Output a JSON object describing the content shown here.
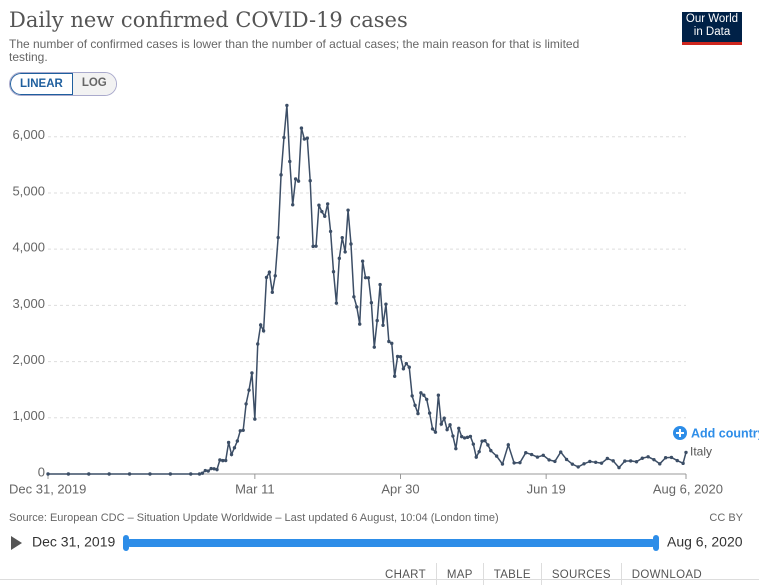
{
  "chart_data": {
    "type": "line",
    "title": "Daily new confirmed COVID-19 cases",
    "subtitle": "The number of confirmed cases is lower than the number of actual cases; the main reason for that is limited testing.",
    "x": [
      "2019-12-31",
      "2020-01-07",
      "2020-01-14",
      "2020-01-21",
      "2020-01-28",
      "2020-02-04",
      "2020-02-11",
      "2020-02-18",
      "2020-02-21",
      "2020-02-22",
      "2020-02-23",
      "2020-02-24",
      "2020-02-25",
      "2020-02-26",
      "2020-02-27",
      "2020-02-28",
      "2020-02-29",
      "2020-03-01",
      "2020-03-02",
      "2020-03-03",
      "2020-03-04",
      "2020-03-05",
      "2020-03-06",
      "2020-03-07",
      "2020-03-08",
      "2020-03-09",
      "2020-03-10",
      "2020-03-11",
      "2020-03-12",
      "2020-03-13",
      "2020-03-14",
      "2020-03-15",
      "2020-03-16",
      "2020-03-17",
      "2020-03-18",
      "2020-03-19",
      "2020-03-20",
      "2020-03-21",
      "2020-03-22",
      "2020-03-23",
      "2020-03-24",
      "2020-03-25",
      "2020-03-26",
      "2020-03-27",
      "2020-03-28",
      "2020-03-29",
      "2020-03-30",
      "2020-03-31",
      "2020-04-01",
      "2020-04-02",
      "2020-04-03",
      "2020-04-04",
      "2020-04-05",
      "2020-04-06",
      "2020-04-07",
      "2020-04-08",
      "2020-04-09",
      "2020-04-10",
      "2020-04-11",
      "2020-04-12",
      "2020-04-13",
      "2020-04-14",
      "2020-04-15",
      "2020-04-16",
      "2020-04-17",
      "2020-04-18",
      "2020-04-19",
      "2020-04-20",
      "2020-04-21",
      "2020-04-22",
      "2020-04-23",
      "2020-04-24",
      "2020-04-25",
      "2020-04-26",
      "2020-04-27",
      "2020-04-28",
      "2020-04-29",
      "2020-04-30",
      "2020-05-01",
      "2020-05-02",
      "2020-05-03",
      "2020-05-04",
      "2020-05-05",
      "2020-05-06",
      "2020-05-07",
      "2020-05-08",
      "2020-05-09",
      "2020-05-10",
      "2020-05-11",
      "2020-05-12",
      "2020-05-13",
      "2020-05-14",
      "2020-05-15",
      "2020-05-16",
      "2020-05-17",
      "2020-05-18",
      "2020-05-19",
      "2020-05-20",
      "2020-05-21",
      "2020-05-22",
      "2020-05-23",
      "2020-05-24",
      "2020-05-25",
      "2020-05-26",
      "2020-05-27",
      "2020-05-28",
      "2020-05-29",
      "2020-05-30",
      "2020-05-31",
      "2020-06-02",
      "2020-06-04",
      "2020-06-06",
      "2020-06-08",
      "2020-06-10",
      "2020-06-12",
      "2020-06-14",
      "2020-06-16",
      "2020-06-18",
      "2020-06-20",
      "2020-06-22",
      "2020-06-24",
      "2020-06-26",
      "2020-06-28",
      "2020-06-30",
      "2020-07-02",
      "2020-07-04",
      "2020-07-06",
      "2020-07-08",
      "2020-07-10",
      "2020-07-12",
      "2020-07-14",
      "2020-07-16",
      "2020-07-18",
      "2020-07-20",
      "2020-07-22",
      "2020-07-24",
      "2020-07-26",
      "2020-07-28",
      "2020-07-30",
      "2020-08-01",
      "2020-08-03",
      "2020-08-05",
      "2020-08-06"
    ],
    "series": [
      {
        "name": "Italy",
        "color": "#3c4e66",
        "values": [
          0,
          0,
          0,
          0,
          0,
          0,
          0,
          0,
          0,
          14,
          62,
          53,
          97,
          93,
          78,
          250,
          238,
          240,
          561,
          347,
          466,
          587,
          769,
          778,
          1247,
          1492,
          1797,
          977,
          2313,
          2651,
          2547,
          3497,
          3590,
          3233,
          3526,
          4207,
          5322,
          5986,
          6557,
          5560,
          4789,
          5249,
          5210,
          6153,
          5959,
          5974,
          5217,
          4050,
          4053,
          4782,
          4668,
          4585,
          4805,
          4316,
          3599,
          3039,
          3836,
          4204,
          3951,
          4694,
          4092,
          3153,
          2972,
          2667,
          3786,
          3493,
          3491,
          3047,
          2256,
          2729,
          3370,
          2646,
          3021,
          2357,
          2324,
          1739,
          2091,
          2086,
          1872,
          1965,
          1900,
          1389,
          1221,
          1075,
          1444,
          1401,
          1327,
          1083,
          802,
          744,
          1402,
          888,
          992,
          789,
          875,
          675,
          451,
          813,
          665,
          642,
          652,
          669,
          531,
          300,
          397,
          584,
          593,
          516,
          416,
          318,
          177,
          518,
          197,
          202,
          379,
          346,
          301,
          333,
          251,
          224,
          390,
          259,
          175,
          126,
          182,
          223,
          208,
          193,
          276,
          234,
          114,
          230,
          233,
          218,
          280,
          306,
          255,
          181,
          289,
          295,
          239,
          190,
          384
        ]
      }
    ],
    "xlim": [
      "2019-12-31",
      "2020-08-06"
    ],
    "xticks": [
      {
        "value": "2019-12-31",
        "label": "Dec 31, 2019"
      },
      {
        "value": "2020-03-11",
        "label": "Mar 11"
      },
      {
        "value": "2020-04-30",
        "label": "Apr 30"
      },
      {
        "value": "2020-06-19",
        "label": "Jun 19"
      },
      {
        "value": "2020-08-06",
        "label": "Aug 6, 2020"
      }
    ],
    "ylim": [
      0,
      6600
    ],
    "yticks": [
      0,
      {
        "value": 1000,
        "label": "1,000"
      },
      {
        "value": 2000,
        "label": "2,000"
      },
      {
        "value": 3000,
        "label": "3,000"
      },
      {
        "value": 4000,
        "label": "4,000"
      },
      {
        "value": 5000,
        "label": "5,000"
      },
      {
        "value": 6000,
        "label": "6,000"
      }
    ],
    "grid": true
  },
  "logo": [
    "Our World",
    "in Data"
  ],
  "scale_buttons": [
    "LINEAR",
    "LOG"
  ],
  "add_country": "Add country",
  "source": "Source: European CDC – Situation Update Worldwide – Last updated 6 August, 10:04 (London time)",
  "license": "CC BY",
  "timeline": {
    "start": "Dec 31, 2019",
    "end": "Aug 6, 2020"
  },
  "tabs": [
    "CHART",
    "MAP",
    "TABLE",
    "SOURCES",
    "DOWNLOAD"
  ]
}
